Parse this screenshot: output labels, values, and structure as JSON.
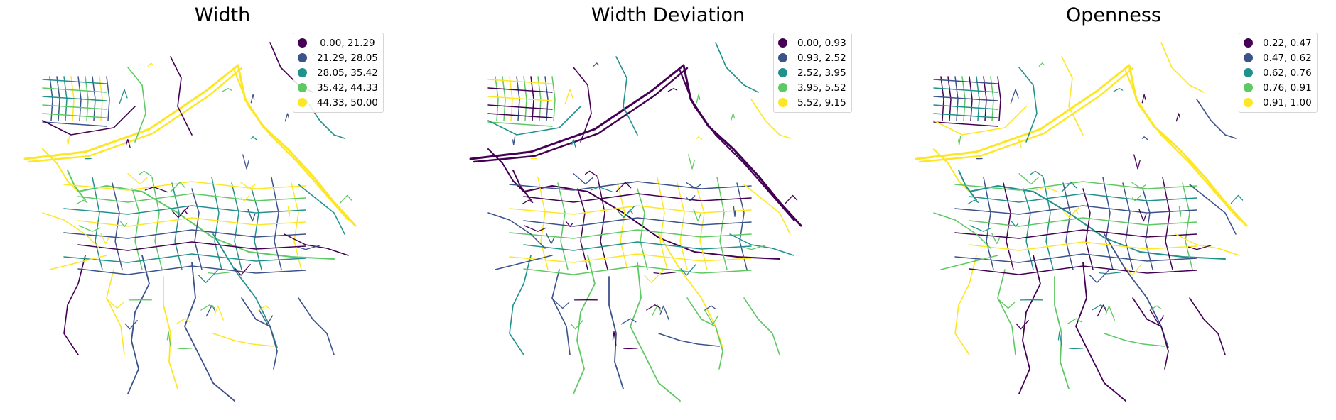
{
  "colors": [
    "#440154",
    "#3b528b",
    "#21918c",
    "#5ec962",
    "#fde725"
  ],
  "panels": [
    {
      "title": "Width",
      "legend": [
        " 0.00, 21.29",
        "21.29, 28.05",
        "28.05, 35.42",
        "35.42, 44.33",
        "44.33, 50.00"
      ]
    },
    {
      "title": "Width Deviation",
      "legend": [
        "0.00, 0.93",
        "0.93, 2.52",
        "2.52, 3.95",
        "3.95, 5.52",
        "5.52, 9.15"
      ]
    },
    {
      "title": "Openness",
      "legend": [
        "0.22, 0.47",
        "0.47, 0.62",
        "0.62, 0.76",
        "0.76, 0.91",
        "0.91, 1.00"
      ]
    }
  ]
}
